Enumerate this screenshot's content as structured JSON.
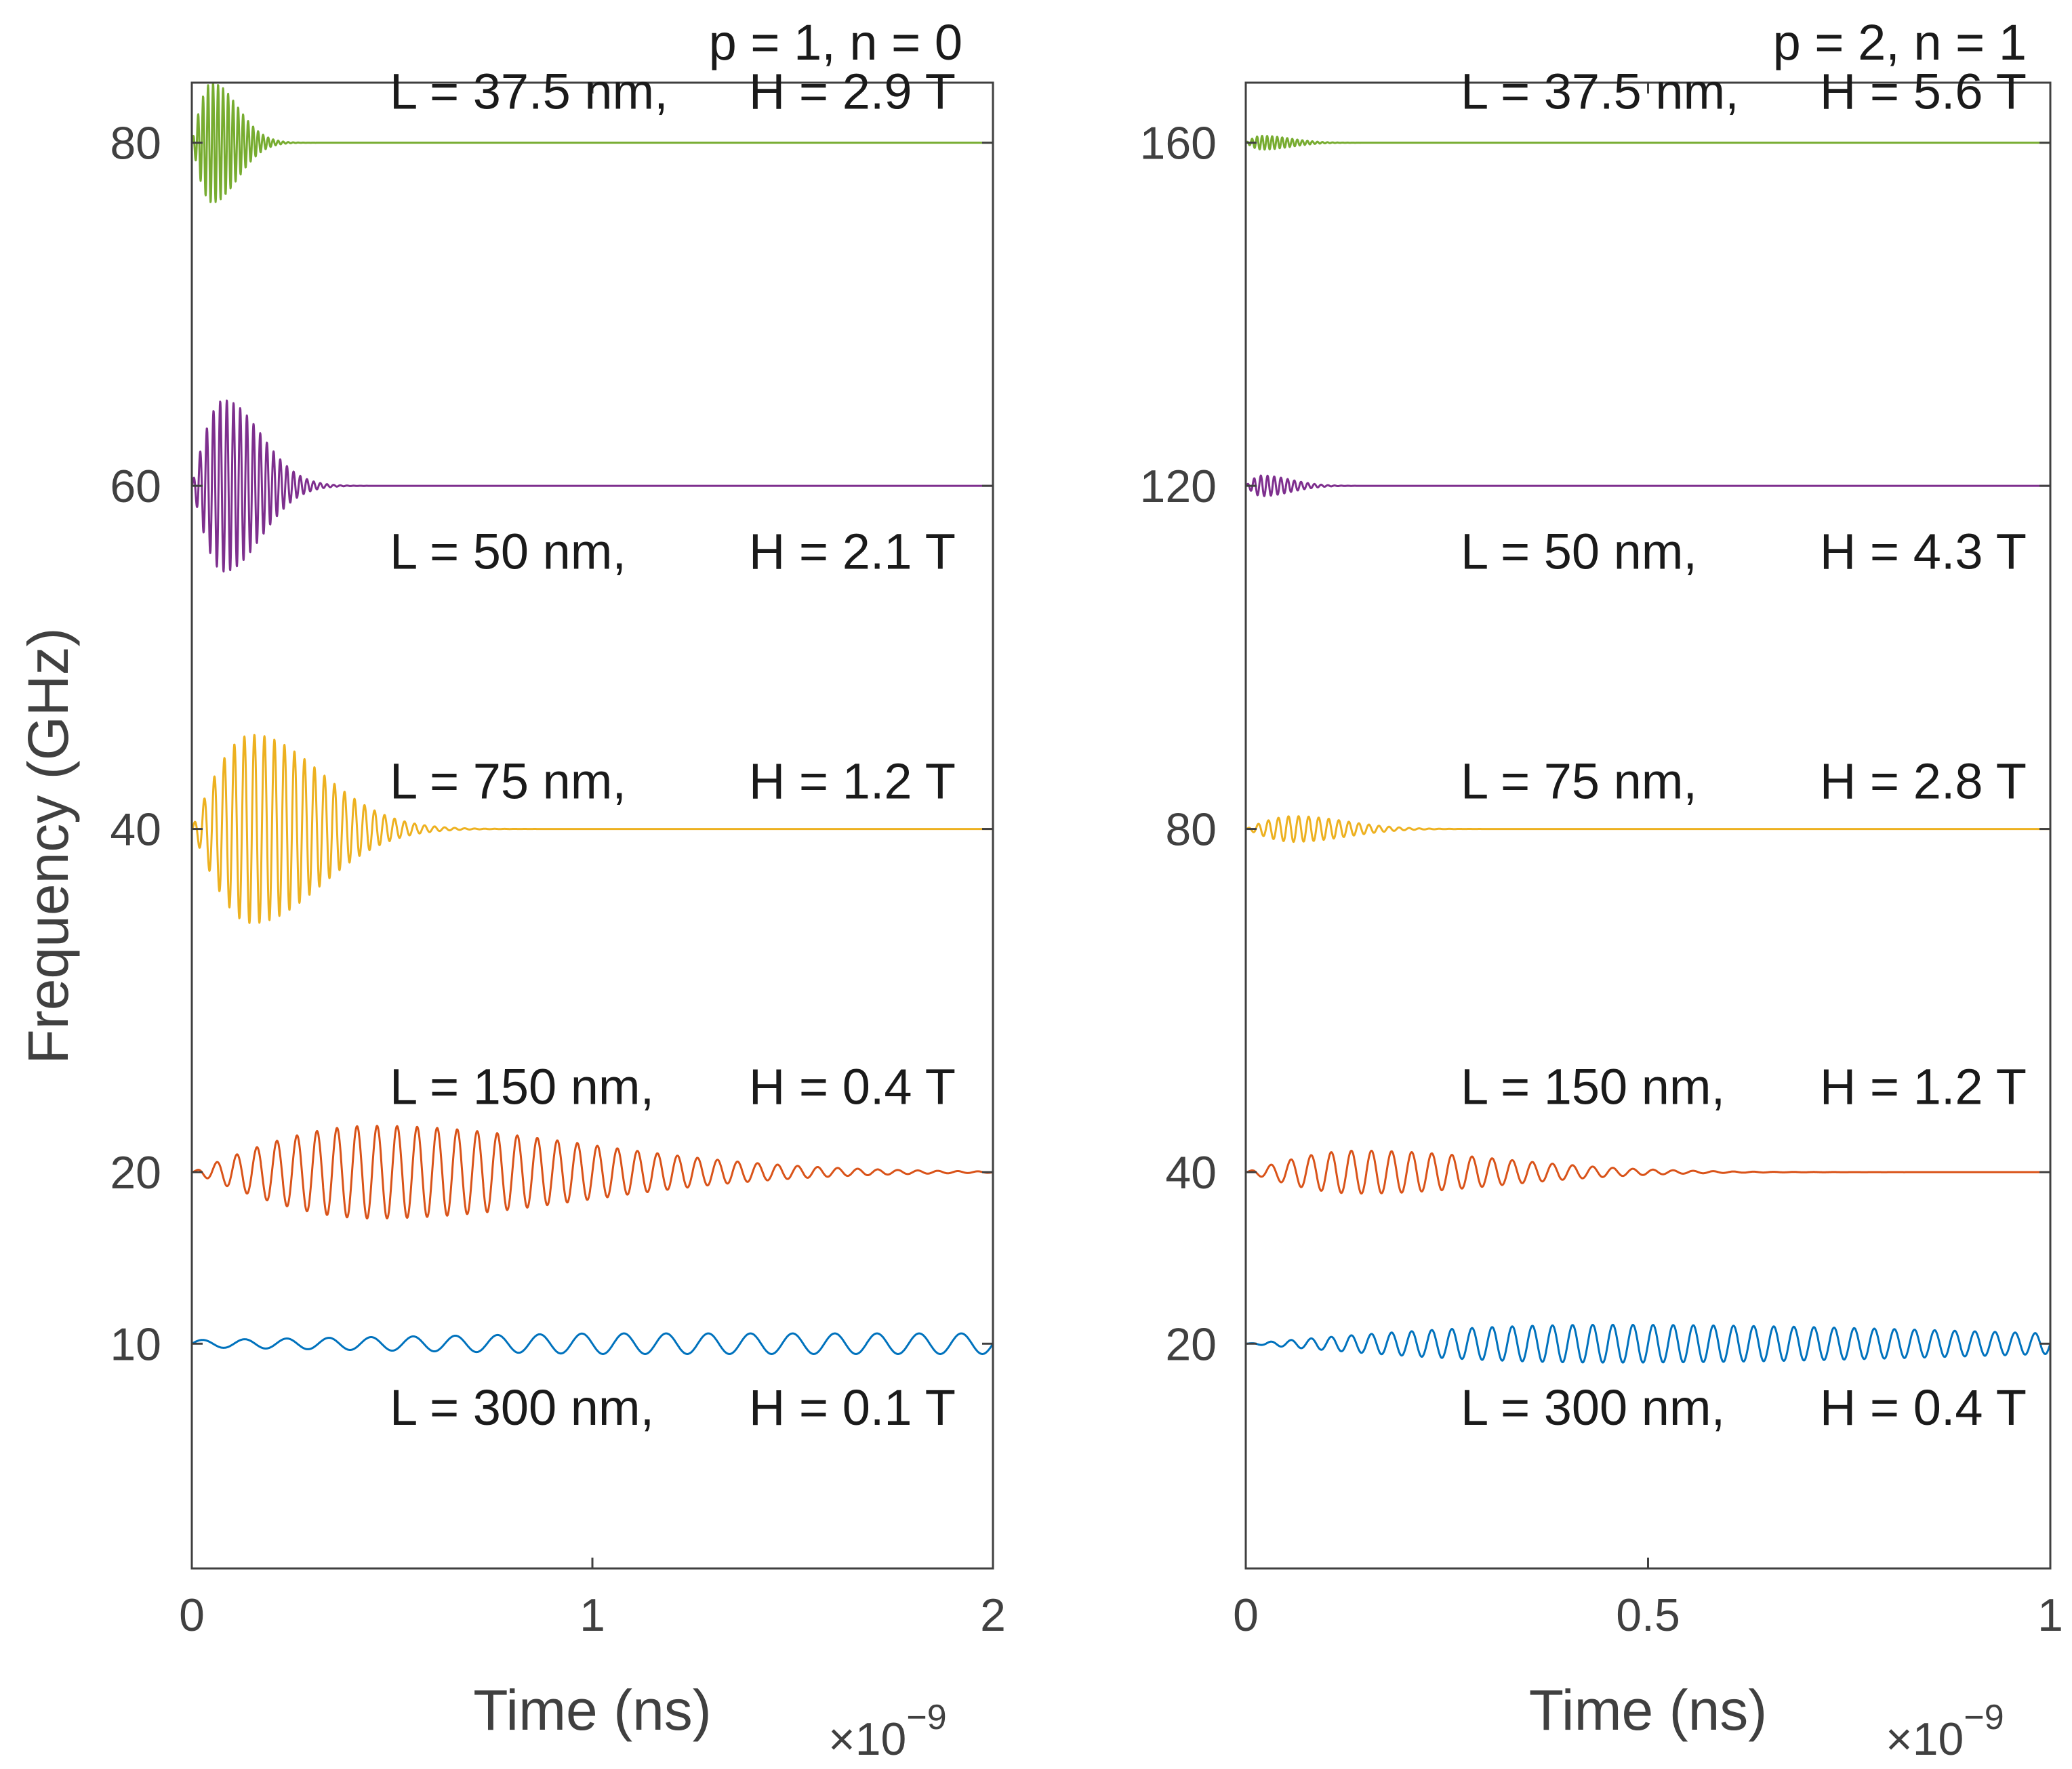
{
  "chart_data": [
    {
      "type": "line",
      "title": "p = 1, n = 0",
      "xlabel": "Time (ns)",
      "ylabel": "Frequency (GHz)",
      "x_multiplier_prefix": "×10",
      "x_multiplier_exponent": "−9",
      "xlim": [
        0,
        2
      ],
      "ylim": [
        -3.1,
        83.5
      ],
      "xticks": [
        0,
        1,
        2
      ],
      "xtick_labels": [
        "0",
        "1",
        "2"
      ],
      "yticks": [
        10,
        20,
        40,
        60,
        80
      ],
      "ytick_labels": [
        "10",
        "20",
        "40",
        "60",
        "80"
      ],
      "series": [
        {
          "name": "L = 37.5 nm, H = 2.9 T",
          "label_prefix": "L = 37.5 nm,",
          "label_suffix": "H = 2.9 T",
          "color": "#77AC30",
          "baseline": 80,
          "amplitude": 3.5,
          "freq": 80,
          "t_peak": 0.05,
          "tau": 0.09,
          "decay": "gauss",
          "label_y": 83.0
        },
        {
          "name": "L = 50 nm, H = 2.1 T",
          "label_prefix": "L = 50 nm,",
          "label_suffix": "H = 2.1 T",
          "color": "#7E2F8E",
          "baseline": 60,
          "amplitude": 5.0,
          "freq": 60,
          "t_peak": 0.08,
          "tau": 0.13,
          "decay": "gauss",
          "label_y": 56.2
        },
        {
          "name": "L = 75 nm, H = 1.2 T",
          "label_prefix": "L = 75 nm,",
          "label_suffix": "H = 1.2 T",
          "color": "#EDB120",
          "baseline": 40,
          "amplitude": 5.5,
          "freq": 40,
          "t_peak": 0.15,
          "tau": 0.24,
          "decay": "gauss",
          "label_y": 42.8
        },
        {
          "name": "L = 150 nm, H = 0.4 T",
          "label_prefix": "L = 150 nm,",
          "label_suffix": "H = 0.4 T",
          "color": "#D95319",
          "baseline": 20,
          "amplitude": 2.7,
          "freq": 20,
          "t_peak": 0.45,
          "tau": 0.75,
          "decay": "gauss",
          "label_y": 25.0
        },
        {
          "name": "L = 300 nm, H =  0.1 T",
          "label_prefix": "L = 300 nm,",
          "label_suffix": "H =  0.1 T",
          "color": "#0072BD",
          "baseline": 10,
          "amplitude": 0.6,
          "freq": 9.5,
          "t_peak": 1.0,
          "tau": 2.0,
          "decay": "rise",
          "label_y": 6.3
        }
      ]
    },
    {
      "type": "line",
      "title": "p = 2, n = 1",
      "xlabel": "Time (ns)",
      "ylabel": "",
      "x_multiplier_prefix": "×10",
      "x_multiplier_exponent": "−9",
      "xlim": [
        0,
        1
      ],
      "ylim": [
        -6.2,
        167
      ],
      "xticks": [
        0,
        0.5,
        1
      ],
      "xtick_labels": [
        "0",
        "0.5",
        "1"
      ],
      "yticks": [
        20,
        40,
        80,
        120,
        160
      ],
      "ytick_labels": [
        "20",
        "40",
        "80",
        "120",
        "160"
      ],
      "series": [
        {
          "name": "L = 37.5 nm, H = 5.6 T",
          "label_prefix": "L = 37.5 nm,",
          "label_suffix": "H = 5.6 T",
          "color": "#77AC30",
          "baseline": 160,
          "amplitude": 0.8,
          "freq": 160,
          "t_peak": 0.02,
          "tau": 0.05,
          "decay": "gauss",
          "label_y": 166.0
        },
        {
          "name": "L = 50 nm, H = 4.3 T",
          "label_prefix": "L = 50 nm,",
          "label_suffix": "H = 4.3 T",
          "color": "#7E2F8E",
          "baseline": 120,
          "amplitude": 1.2,
          "freq": 120,
          "t_peak": 0.02,
          "tau": 0.05,
          "decay": "gauss",
          "label_y": 112.4
        },
        {
          "name": "L = 75 nm, H = 2.8 T",
          "label_prefix": "L = 75 nm,",
          "label_suffix": "H = 2.8 T",
          "color": "#EDB120",
          "baseline": 80,
          "amplitude": 1.5,
          "freq": 80,
          "t_peak": 0.06,
          "tau": 0.09,
          "decay": "gauss",
          "label_y": 85.6
        },
        {
          "name": "L = 150 nm, H = 1.2 T",
          "label_prefix": "L = 150 nm,",
          "label_suffix": "H = 1.2 T",
          "color": "#D95319",
          "baseline": 40,
          "amplitude": 2.5,
          "freq": 40,
          "t_peak": 0.14,
          "tau": 0.25,
          "decay": "gauss",
          "label_y": 50.0
        },
        {
          "name": "L = 300 nm, H = 0.4 T",
          "label_prefix": "L = 300 nm,",
          "label_suffix": "H = 0.4 T",
          "color": "#0072BD",
          "baseline": 20,
          "amplitude": 2.2,
          "freq": 40,
          "t_peak": 0.45,
          "tau": 0.7,
          "decay": "gauss",
          "label_y": 12.6
        }
      ]
    }
  ]
}
